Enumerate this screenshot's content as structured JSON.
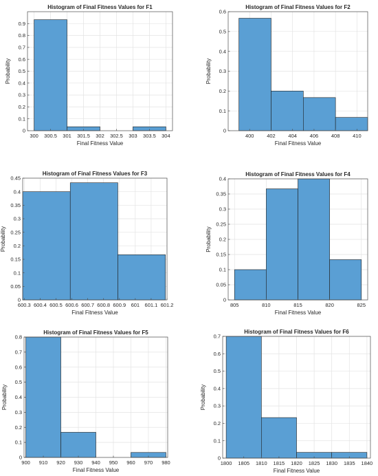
{
  "figure": {
    "bar_color": "#5a9fd4",
    "bar_edge": "#1f1f1f",
    "grid_color": "#e3e3e3",
    "axis_color": "#4d4d4d"
  },
  "chart_data": [
    {
      "type": "bar",
      "title": "Histogram of Final Fitness Values for F1",
      "xlabel": "Final Fitness Value",
      "ylabel": "Probability",
      "xlim": [
        299.8,
        304.2
      ],
      "ylim": [
        0,
        1
      ],
      "xticks": [
        300,
        300.5,
        301,
        301.5,
        302,
        302.5,
        303,
        303.5,
        304
      ],
      "xtick_labels": [
        "300",
        "300.5",
        "301",
        "301.5",
        "302",
        "302.5",
        "303",
        "303.5",
        "304"
      ],
      "yticks": [
        0,
        0.1,
        0.2,
        0.3,
        0.4,
        0.5,
        0.6,
        0.7,
        0.8,
        0.9
      ],
      "ytick_labels": [
        "0",
        "0.1",
        "0.2",
        "0.3",
        "0.4",
        "0.5",
        "0.6",
        "0.7",
        "0.8",
        "0.9"
      ],
      "bin_edges": [
        300,
        301,
        302,
        303,
        304
      ],
      "values": [
        0.933,
        0.033,
        0,
        0.033
      ],
      "grid": true
    },
    {
      "type": "bar",
      "title": "Histogram of Final Fitness Values for F2",
      "xlabel": "Final Fitness Value",
      "ylabel": "Probability",
      "xlim": [
        398,
        411
      ],
      "ylim": [
        0,
        0.6
      ],
      "xticks": [
        400,
        402,
        404,
        406,
        408,
        410
      ],
      "xtick_labels": [
        "400",
        "402",
        "404",
        "406",
        "408",
        "410"
      ],
      "yticks": [
        0,
        0.1,
        0.2,
        0.3,
        0.4,
        0.5,
        0.6
      ],
      "ytick_labels": [
        "0",
        "0.1",
        "0.2",
        "0.3",
        "0.4",
        "0.5",
        "0.6"
      ],
      "bin_edges": [
        399,
        402,
        405,
        408,
        411
      ],
      "values": [
        0.567,
        0.2,
        0.167,
        0.067
      ],
      "grid": true
    },
    {
      "type": "bar",
      "title": "Histogram of Final Fitness Values for F3",
      "xlabel": "Final Fitness Value",
      "ylabel": "Probability",
      "xlim": [
        600.29,
        601.2
      ],
      "ylim": [
        0,
        0.45
      ],
      "xticks": [
        600.3,
        600.4,
        600.5,
        600.6,
        600.7,
        600.8,
        600.9,
        601,
        601.1,
        601.2
      ],
      "xtick_labels": [
        "600.3",
        "600.4",
        "600.5",
        "600.6",
        "600.7",
        "600.8",
        "600.9",
        "601",
        "601.1",
        "601.2"
      ],
      "yticks": [
        0,
        0.05,
        0.1,
        0.15,
        0.2,
        0.25,
        0.3,
        0.35,
        0.4,
        0.45
      ],
      "ytick_labels": [
        "0",
        "0.05",
        "0.1",
        "0.15",
        "0.2",
        "0.25",
        "0.3",
        "0.35",
        "0.4",
        "0.45"
      ],
      "bin_edges": [
        600.29,
        600.59,
        600.89,
        601.19
      ],
      "values": [
        0.4,
        0.433,
        0.167
      ],
      "grid": true
    },
    {
      "type": "bar",
      "title": "Histogram of Final Fitness Values for F4",
      "xlabel": "Final Fitness Value",
      "ylabel": "Probability",
      "xlim": [
        804,
        826
      ],
      "ylim": [
        0,
        0.4
      ],
      "xticks": [
        805,
        810,
        815,
        820,
        825
      ],
      "xtick_labels": [
        "805",
        "810",
        "815",
        "820",
        "825"
      ],
      "yticks": [
        0,
        0.05,
        0.1,
        0.15,
        0.2,
        0.25,
        0.3,
        0.35,
        0.4
      ],
      "ytick_labels": [
        "0",
        "0.05",
        "0.1",
        "0.15",
        "0.2",
        "0.25",
        "0.3",
        "0.35",
        "0.4"
      ],
      "bin_edges": [
        805,
        810,
        815,
        820,
        825
      ],
      "values": [
        0.1,
        0.367,
        0.4,
        0.133
      ],
      "grid": true
    },
    {
      "type": "bar",
      "title": "Histogram of Final Fitness Values for F5",
      "xlabel": "Final Fitness Value",
      "ylabel": "Probability",
      "xlim": [
        899,
        981
      ],
      "ylim": [
        0,
        0.8
      ],
      "xticks": [
        900,
        910,
        920,
        930,
        940,
        950,
        960,
        970,
        980
      ],
      "xtick_labels": [
        "900",
        "910",
        "920",
        "930",
        "940",
        "950",
        "960",
        "970",
        "980"
      ],
      "yticks": [
        0,
        0.1,
        0.2,
        0.3,
        0.4,
        0.5,
        0.6,
        0.7,
        0.8
      ],
      "ytick_labels": [
        "0",
        "0.1",
        "0.2",
        "0.3",
        "0.4",
        "0.5",
        "0.6",
        "0.7",
        "0.8"
      ],
      "bin_edges": [
        900,
        920,
        940,
        960,
        980
      ],
      "values": [
        0.8,
        0.167,
        0,
        0.033
      ],
      "grid": true
    },
    {
      "type": "bar",
      "title": "Histogram of Final Fitness Values for F6",
      "xlabel": "Final Fitness Value",
      "ylabel": "Probability",
      "xlim": [
        1799,
        1841
      ],
      "ylim": [
        0,
        0.7
      ],
      "xticks": [
        1800,
        1805,
        1810,
        1815,
        1820,
        1825,
        1830,
        1835,
        1840
      ],
      "xtick_labels": [
        "1800",
        "1805",
        "1810",
        "1815",
        "1820",
        "1825",
        "1830",
        "1835",
        "1840"
      ],
      "yticks": [
        0,
        0.1,
        0.2,
        0.3,
        0.4,
        0.5,
        0.6,
        0.7
      ],
      "ytick_labels": [
        "0",
        "0.1",
        "0.2",
        "0.3",
        "0.4",
        "0.5",
        "0.6",
        "0.7"
      ],
      "bin_edges": [
        1800,
        1810,
        1820,
        1830,
        1840
      ],
      "values": [
        0.7,
        0.233,
        0.033,
        0.033
      ],
      "grid": true
    }
  ]
}
